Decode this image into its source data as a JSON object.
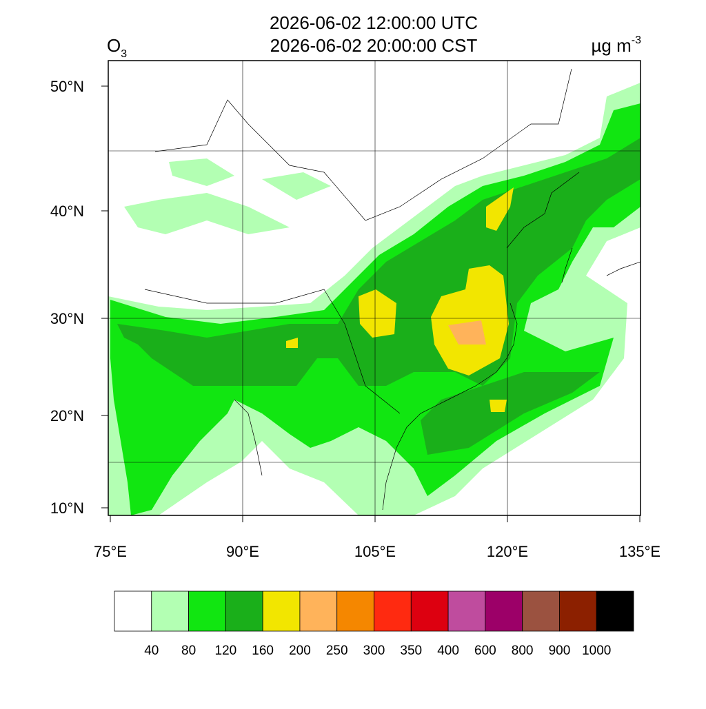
{
  "title": {
    "line1": "2026-06-02 12:00:00 UTC",
    "line2": "2026-06-02 20:00:00 CST"
  },
  "variable": {
    "name": "O",
    "subscript": "3"
  },
  "units": {
    "text": "µg m",
    "superscript": "-3"
  },
  "axes": {
    "x_labels": [
      "75°E",
      "90°E",
      "105°E",
      "120°E",
      "135°E"
    ],
    "y_labels": [
      "50°N",
      "40°N",
      "30°N",
      "20°N",
      "10°N"
    ]
  },
  "colorbar": {
    "colors": [
      "#ffffff",
      "#b3ffb3",
      "#11e611",
      "#1aaf1a",
      "#f2e600",
      "#ffb35a",
      "#f58700",
      "#ff2a10",
      "#dd0010",
      "#bf4c9e",
      "#9c0068",
      "#9b5240",
      "#8c2000",
      "#000000"
    ],
    "levels": [
      40,
      80,
      120,
      160,
      200,
      250,
      300,
      350,
      400,
      600,
      800,
      900,
      1000
    ]
  }
}
